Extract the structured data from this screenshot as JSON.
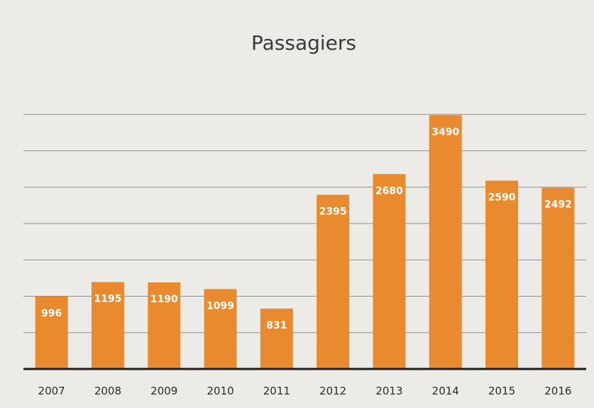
{
  "chart_data": {
    "type": "bar",
    "title": "Passagiers",
    "xlabel": "",
    "ylabel": "",
    "categories": [
      "2007",
      "2008",
      "2009",
      "2010",
      "2011",
      "2012",
      "2013",
      "2014",
      "2015",
      "2016"
    ],
    "values": [
      996,
      1195,
      1190,
      1099,
      831,
      2395,
      2680,
      3490,
      2590,
      2492
    ],
    "ylim": [
      0,
      4000
    ],
    "grid": true,
    "legend": "none",
    "bar_color": "#ea8a2e"
  }
}
